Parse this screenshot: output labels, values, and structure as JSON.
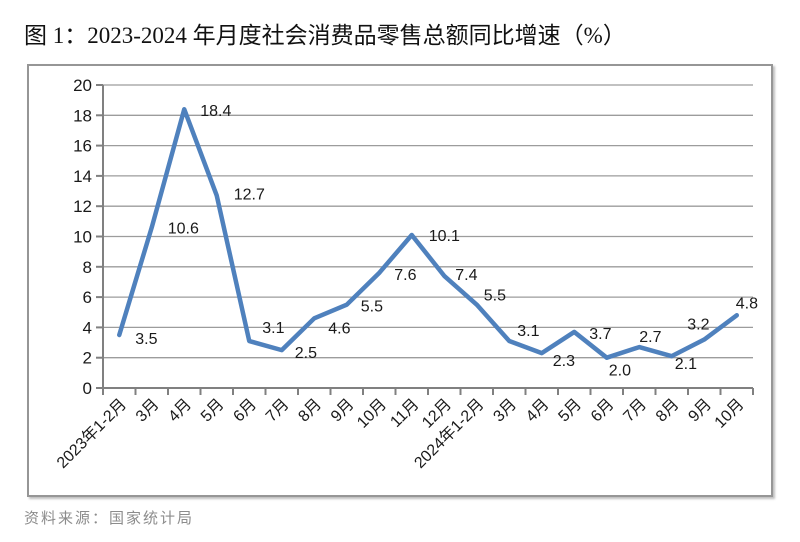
{
  "page": {
    "title": "图 1：2023-2024 年月度社会消费品零售总额同比增速（%）",
    "source": "资料来源：国家统计局"
  },
  "chart_data": {
    "type": "line",
    "title": "图 1：2023-2024 年月度社会消费品零售总额同比增速（%）",
    "categories": [
      "2023年1-2月",
      "3月",
      "4月",
      "5月",
      "6月",
      "7月",
      "8月",
      "9月",
      "10月",
      "11月",
      "12月",
      "2024年1-2月",
      "3月",
      "4月",
      "5月",
      "6月",
      "7月",
      "8月",
      "9月",
      "10月"
    ],
    "values": [
      3.5,
      10.6,
      18.4,
      12.7,
      3.1,
      2.5,
      4.6,
      5.5,
      7.6,
      10.1,
      7.4,
      5.5,
      3.1,
      2.3,
      3.7,
      2.0,
      2.7,
      2.1,
      3.2,
      4.8
    ],
    "ylabel": "",
    "xlabel": "",
    "ylim": [
      0,
      20
    ],
    "ytick_step": 2,
    "grid": "horizontal",
    "legend": "none",
    "data_labels": "one decimal, beside each point",
    "x_label_rotation_deg": 45,
    "colors": {
      "line": "#4F81BD",
      "grid": "#9C9C9C",
      "axis": "#808080",
      "tick_text": "#1a1a1a",
      "data_label_text": "#1a1a1a",
      "title_text": "#111111",
      "source_text": "#8c8c8c",
      "frame_border": "#969696"
    }
  }
}
